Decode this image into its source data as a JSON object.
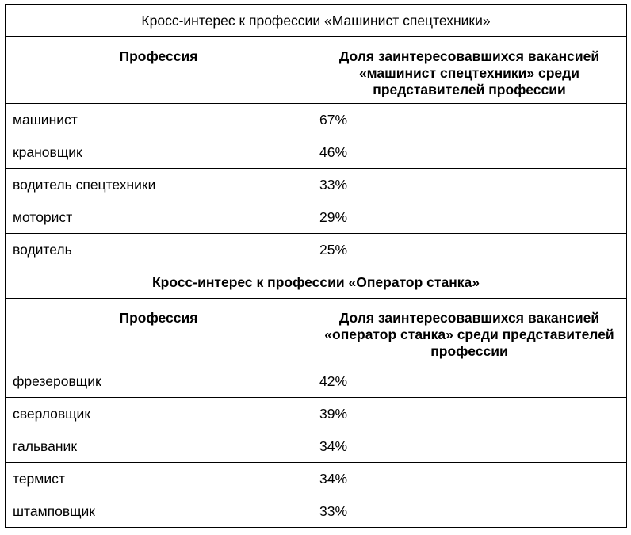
{
  "sections": [
    {
      "title": "Кросс-интерес к профессии «Машинист спецтехники»",
      "header_col1": "Профессия",
      "header_col2": "Доля заинтересовавшихся вакансией «машинист спецтехники» среди представителей профессии",
      "rows": [
        {
          "profession": "машинист",
          "share": "67%"
        },
        {
          "profession": "крановщик",
          "share": "46%"
        },
        {
          "profession": "водитель спецтехники",
          "share": "33%"
        },
        {
          "profession": "моторист",
          "share": "29%"
        },
        {
          "profession": "водитель",
          "share": "25%"
        }
      ]
    },
    {
      "title": "Кросс-интерес к профессии «Оператор станка»",
      "header_col1": "Профессия",
      "header_col2": "Доля заинтересовавшихся вакансией «оператор станка» среди представителей профессии",
      "rows": [
        {
          "profession": "фрезеровщик",
          "share": "42%"
        },
        {
          "profession": "сверловщик",
          "share": "39%"
        },
        {
          "profession": "гальваник",
          "share": "34%"
        },
        {
          "profession": "термист",
          "share": "34%"
        },
        {
          "profession": "штамповщик",
          "share": "33%"
        }
      ]
    }
  ]
}
